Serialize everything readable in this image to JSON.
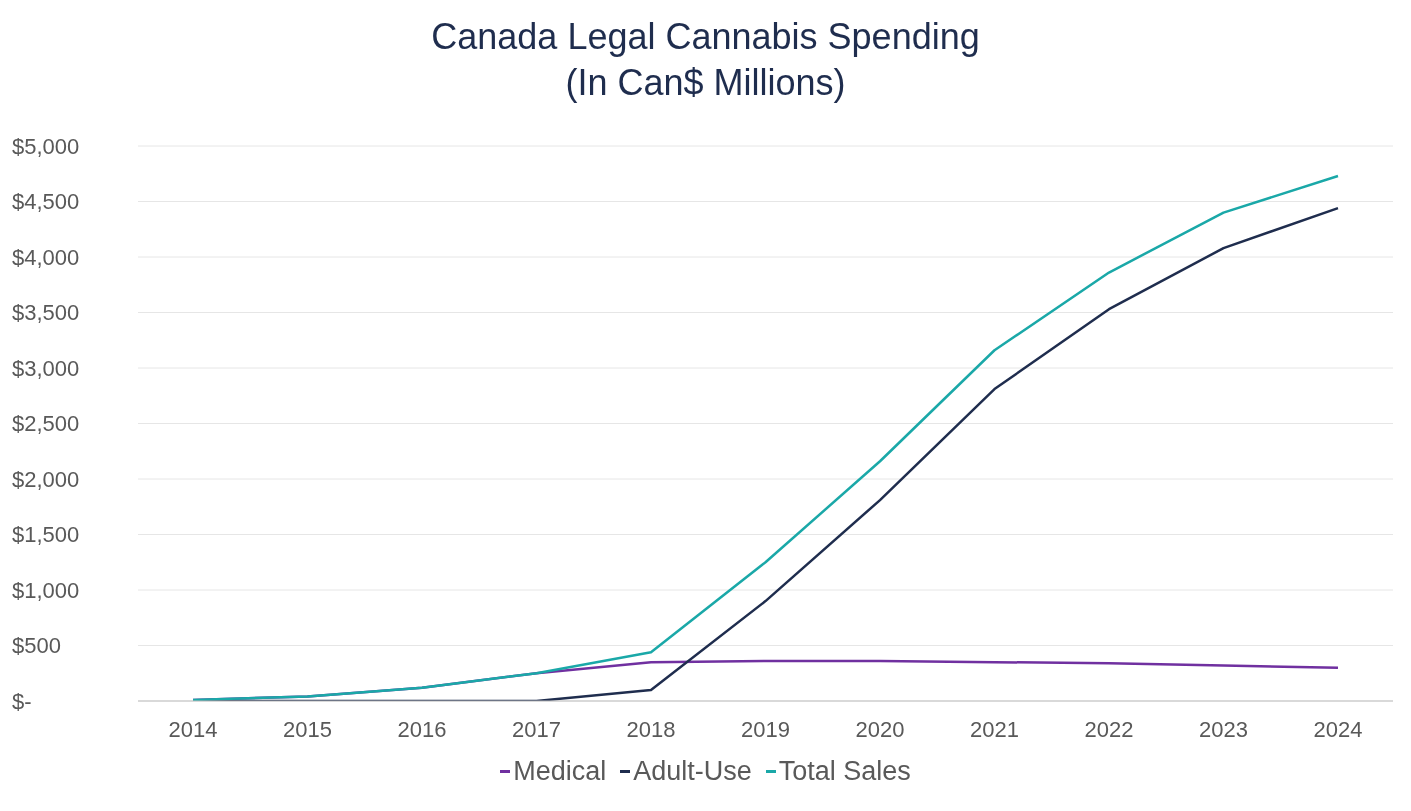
{
  "chart_data": {
    "type": "line",
    "title": "Canada Legal Cannabis Spending",
    "subtitle": "(In Can$ Millions)",
    "categories": [
      "2014",
      "2015",
      "2016",
      "2017",
      "2018",
      "2019",
      "2020",
      "2021",
      "2022",
      "2023",
      "2024"
    ],
    "series": [
      {
        "name": "Medical",
        "color": "#7030a0",
        "values": [
          10,
          40,
          120,
          250,
          350,
          360,
          360,
          350,
          340,
          320,
          300
        ]
      },
      {
        "name": "Adult-Use",
        "color": "#1f2d4e",
        "values": [
          0,
          0,
          0,
          0,
          100,
          900,
          1810,
          2810,
          3530,
          4080,
          4440
        ]
      },
      {
        "name": "Total Sales",
        "color": "#1aa8a8",
        "values": [
          10,
          40,
          120,
          250,
          440,
          1250,
          2160,
          3160,
          3860,
          4400,
          4730
        ]
      }
    ],
    "ylim": [
      0,
      5000
    ],
    "yticks": [
      {
        "value": 0,
        "label": "$-"
      },
      {
        "value": 500,
        "label": "$500"
      },
      {
        "value": 1000,
        "label": "$1,000"
      },
      {
        "value": 1500,
        "label": "$1,500"
      },
      {
        "value": 2000,
        "label": "$2,000"
      },
      {
        "value": 2500,
        "label": "$2,500"
      },
      {
        "value": 3000,
        "label": "$3,000"
      },
      {
        "value": 3500,
        "label": "$3,500"
      },
      {
        "value": 4000,
        "label": "$4,000"
      },
      {
        "value": 4500,
        "label": "$4,500"
      },
      {
        "value": 5000,
        "label": "$5,000"
      }
    ],
    "grid": "y",
    "legend": "bottom",
    "marker": "none",
    "line_style": "solid"
  }
}
